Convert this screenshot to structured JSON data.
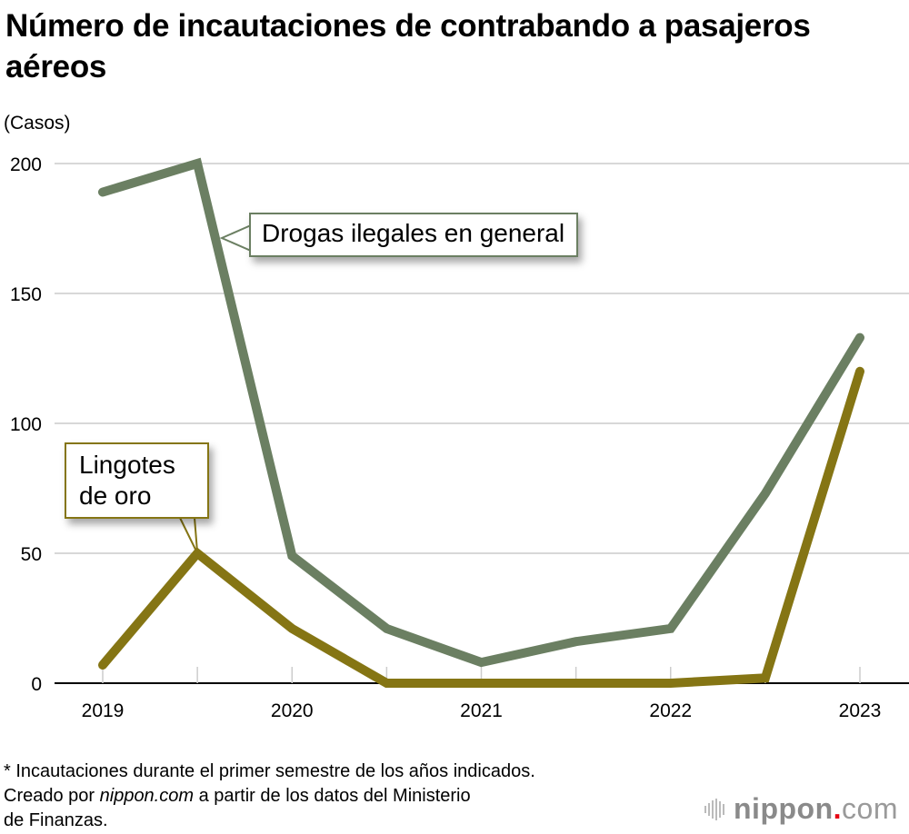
{
  "chart_data": {
    "type": "line",
    "title": "Número de incautaciones de contrabando a pasajeros aéreos",
    "ylabel": "(Casos)",
    "xlabel": "",
    "ylim": [
      0,
      200
    ],
    "yticks": [
      0,
      50,
      100,
      150,
      200
    ],
    "x": [
      "2019",
      "2019 H2",
      "2020",
      "2020 H2",
      "2021",
      "2021 H2",
      "2022",
      "2022 H2",
      "2023"
    ],
    "xtick_labels": [
      "2019",
      "",
      "2020",
      "",
      "2021",
      "",
      "2022",
      "",
      "2023"
    ],
    "grid": true,
    "series": [
      {
        "name": "Drogas ilegales en general",
        "color": "#6b7f62",
        "values": [
          189,
          200,
          49,
          21,
          8,
          16,
          21,
          73,
          133
        ]
      },
      {
        "name": "Lingotes de oro",
        "color": "#857514",
        "values": [
          7,
          50,
          21,
          0,
          0,
          0,
          0,
          2,
          120
        ]
      }
    ],
    "annotations": [
      {
        "text": "Drogas ilegales en general",
        "series": 0,
        "point_index": 1
      },
      {
        "text": "Lingotes de oro",
        "series": 1,
        "point_index": 1
      }
    ]
  },
  "header": {
    "title": "Número de incautaciones de contrabando a pasajeros aéreos",
    "unit": "(Casos)"
  },
  "labels": {
    "drugs": "Drogas ilegales en general",
    "gold_line1": "Lingotes",
    "gold_line2": "de oro"
  },
  "footer": {
    "note": "* Incautaciones durante el primer semestre de los años indicados.",
    "source_prefix": "Creado por ",
    "source_site": "nippon.com",
    "source_suffix": " a partir de los datos del Ministerio",
    "source_line2": "de Finanzas."
  },
  "logo": {
    "name": "nippon",
    "dot": ".",
    "tld": "com"
  },
  "colors": {
    "grid": "#cccccc",
    "axis": "#000000",
    "logo_dot": "#e60012"
  }
}
